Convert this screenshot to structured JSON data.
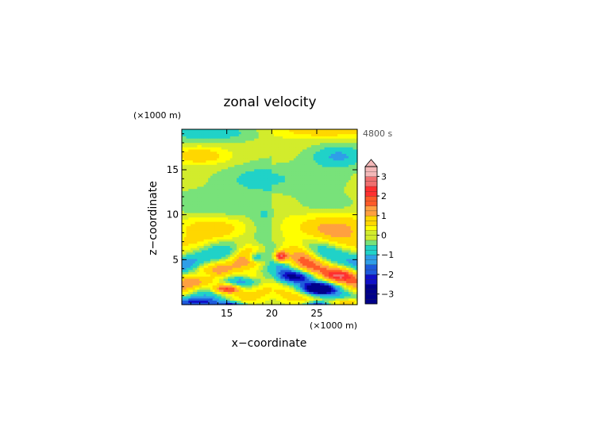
{
  "chart_data": {
    "type": "heatmap",
    "title": "zonal velocity",
    "xlabel": "x−coordinate",
    "ylabel": "z−coordinate",
    "x_unit": "(×1000 m)",
    "y_unit": "(×1000 m)",
    "time_label": "4800 s",
    "xlim": [
      10,
      29.5
    ],
    "ylim": [
      0,
      19.5
    ],
    "x_ticks": [
      {
        "value": 15,
        "label": "15"
      },
      {
        "value": 20,
        "label": "20"
      },
      {
        "value": 25,
        "label": "25"
      }
    ],
    "y_ticks": [
      {
        "value": 5,
        "label": "5"
      },
      {
        "value": 10,
        "label": "10"
      },
      {
        "value": 15,
        "label": "15"
      }
    ],
    "colorbar": {
      "min": -3.5,
      "max": 3.5,
      "step": 0.25,
      "extend": "max",
      "tick_values": [
        -3,
        -2,
        -1,
        0,
        1,
        2,
        3
      ],
      "tick_labels": [
        "−3",
        "−2",
        "−1",
        "0",
        "1",
        "2",
        "3"
      ],
      "colors": [
        "#00008b",
        "#1010c8",
        "#1e5adc",
        "#2f9ee8",
        "#20d2c8",
        "#78e27a",
        "#d2ec2c",
        "#ffff00",
        "#ffd700",
        "#ffa040",
        "#ff5a28",
        "#ff3030",
        "#f07070",
        "#f4b8b8"
      ],
      "color_bounds": [
        -3.5,
        -2.5,
        -2,
        -1.5,
        -1,
        -0.5,
        -0.15,
        0.15,
        0.5,
        1,
        1.5,
        2,
        2.5,
        3,
        3.5
      ]
    }
  }
}
